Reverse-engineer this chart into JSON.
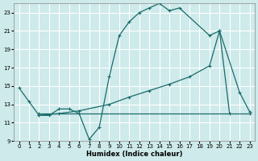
{
  "xlabel": "Humidex (Indice chaleur)",
  "bg_color": "#ceeaea",
  "grid_color": "#ffffff",
  "line_color": "#1a6b6b",
  "xlim": [
    -0.5,
    23.5
  ],
  "ylim": [
    9,
    24
  ],
  "xticks": [
    0,
    1,
    2,
    3,
    4,
    5,
    6,
    7,
    8,
    9,
    10,
    11,
    12,
    13,
    14,
    15,
    16,
    17,
    18,
    19,
    20,
    21,
    22,
    23
  ],
  "yticks": [
    9,
    11,
    13,
    15,
    17,
    19,
    21,
    23
  ],
  "line1_x": [
    0,
    1,
    2,
    3,
    4,
    5,
    6,
    7,
    8,
    9,
    10,
    11,
    12,
    13,
    14,
    15,
    16,
    19,
    20,
    21
  ],
  "line1_y": [
    14.8,
    13.3,
    11.8,
    11.8,
    12.5,
    12.5,
    12.0,
    9.2,
    10.5,
    16.0,
    20.5,
    22.0,
    23.0,
    23.5,
    24.0,
    23.2,
    23.5,
    20.5,
    21.0,
    12.0
  ],
  "line2_x": [
    2,
    4,
    6,
    9,
    11,
    13,
    15,
    17,
    19,
    20,
    22,
    23
  ],
  "line2_y": [
    11.8,
    12.0,
    12.3,
    13.0,
    13.8,
    14.5,
    15.2,
    16.0,
    17.2,
    21.0,
    14.3,
    12.2
  ],
  "line3_x": [
    2,
    23
  ],
  "line3_y": [
    12.0,
    12.0
  ]
}
